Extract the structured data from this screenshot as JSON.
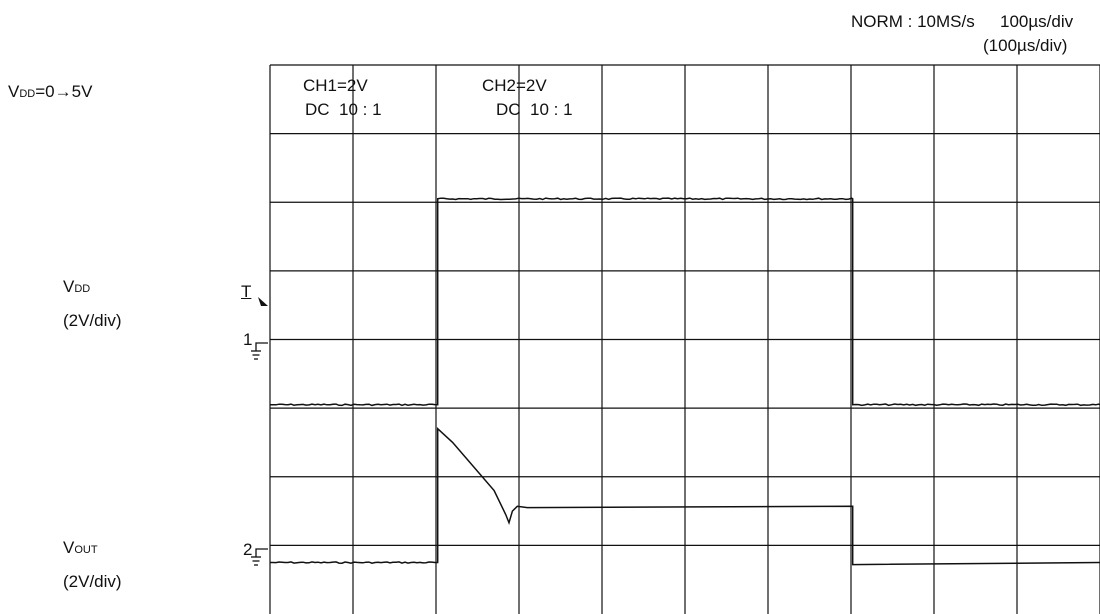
{
  "header": {
    "mode": "NORM : 10MS/s",
    "timebase": "100µs/div",
    "timebase_alt": "(100µs/div)"
  },
  "condition": {
    "label": "V",
    "label_sub": "DD",
    "value": "=0→5V"
  },
  "channels": [
    {
      "setting": "CH1=2V",
      "coupling": "DC  10 : 1"
    },
    {
      "setting": "CH2=2V",
      "coupling": "DC  10 : 1"
    }
  ],
  "side_labels": {
    "vdd": {
      "name": "V",
      "name_sub": "DD",
      "scale": "(2V/div)"
    },
    "vout": {
      "name": "V",
      "name_sub": "OUT",
      "scale": "(2V/div)"
    }
  },
  "markers": {
    "trigger": "T",
    "ch1_ground": "1",
    "ch2_ground": "2"
  },
  "colors": {
    "trace": "#111111",
    "grid": "#111111",
    "background": "#ffffff"
  },
  "chart_data": {
    "type": "line",
    "grid": true,
    "x_divisions": 10,
    "y_divisions": 8,
    "x_unit": "div",
    "y_unit": "div",
    "xlim": [
      0,
      10
    ],
    "ylim": [
      0,
      8
    ],
    "series": [
      {
        "name": "CH1",
        "points": [
          [
            0,
            3.05
          ],
          [
            2.02,
            3.05
          ],
          [
            2.02,
            6.05
          ],
          [
            7.02,
            6.05
          ],
          [
            7.02,
            3.05
          ],
          [
            10,
            3.05
          ]
        ]
      },
      {
        "name": "CH2",
        "points": [
          [
            0,
            0.75
          ],
          [
            2.02,
            0.75
          ],
          [
            2.02,
            2.7
          ],
          [
            2.2,
            2.5
          ],
          [
            2.7,
            1.8
          ],
          [
            2.84,
            1.45
          ],
          [
            2.88,
            1.33
          ],
          [
            2.92,
            1.5
          ],
          [
            2.98,
            1.57
          ],
          [
            3.1,
            1.55
          ],
          [
            7.02,
            1.57
          ],
          [
            7.02,
            0.72
          ],
          [
            10,
            0.75
          ]
        ]
      }
    ]
  }
}
